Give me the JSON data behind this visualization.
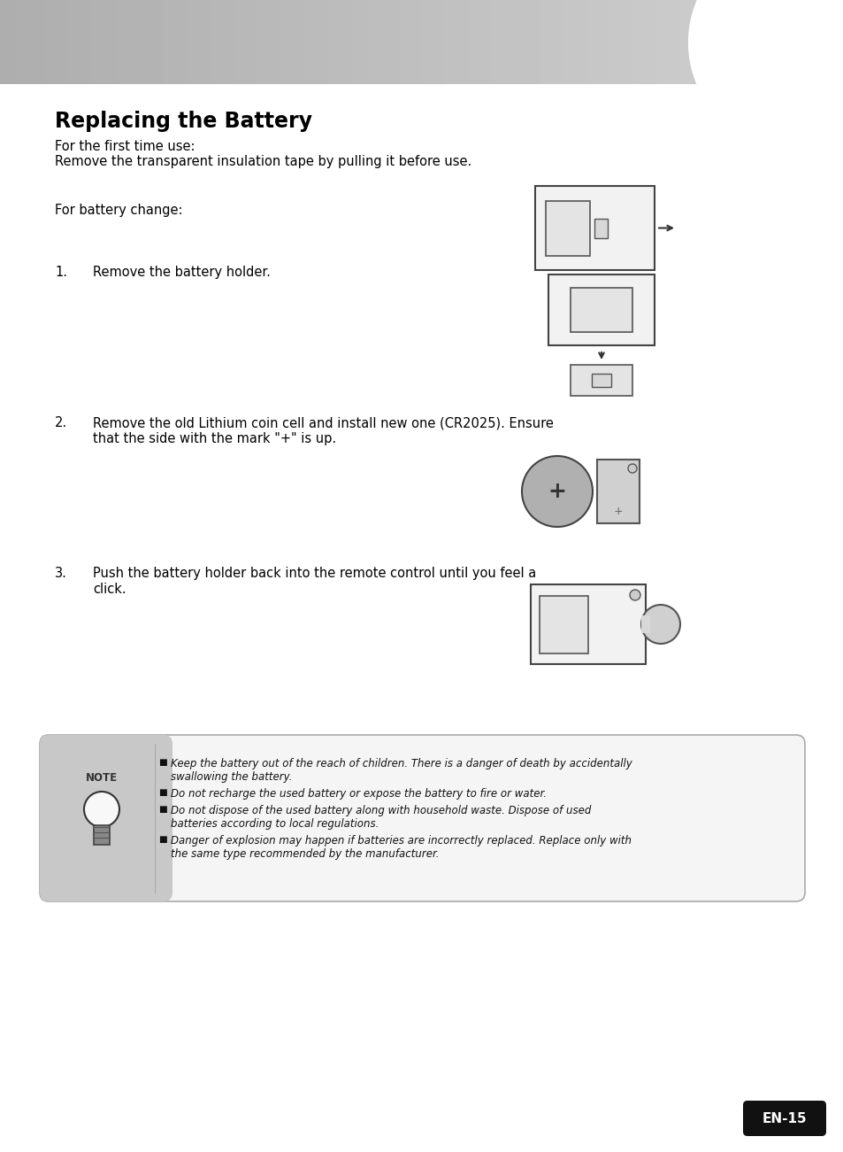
{
  "title": "Replacing the Battery",
  "bg_color": "#ffffff",
  "title_font_size": 17,
  "body_font_size": 10.5,
  "text_color": "#000000",
  "para1_line1": "For the first time use:",
  "para1_line2": "Remove the transparent insulation tape by pulling it before use.",
  "para2": "For battery change:",
  "step1_num": "1.",
  "step1_text": "Remove the battery holder.",
  "step2_num": "2.",
  "step2_text1": "Remove the old Lithium coin cell and install new one (CR2025). Ensure",
  "step2_text2": "that the side with the mark \"+\" is up.",
  "step3_num": "3.",
  "step3_text1": "Push the battery holder back into the remote control until you feel a",
  "step3_text2": "click.",
  "note_bullets": [
    [
      "Keep the battery out of the reach of children. There is a danger of death by accidentally",
      "swallowing the battery."
    ],
    [
      "Do not recharge the used battery or expose the battery to fire or water."
    ],
    [
      "Do not dispose of the used battery along with household waste. Dispose of used",
      "batteries according to local regulations."
    ],
    [
      "Danger of explosion may happen if batteries are incorrectly replaced. Replace only with",
      "the same type recommended by the manufacturer."
    ]
  ],
  "page_num": "EN-15",
  "note_bg": "#c8c8c8",
  "note_box_bg": "#f5f5f5",
  "note_border": "#aaaaaa",
  "header_color": "#b8b8b8"
}
